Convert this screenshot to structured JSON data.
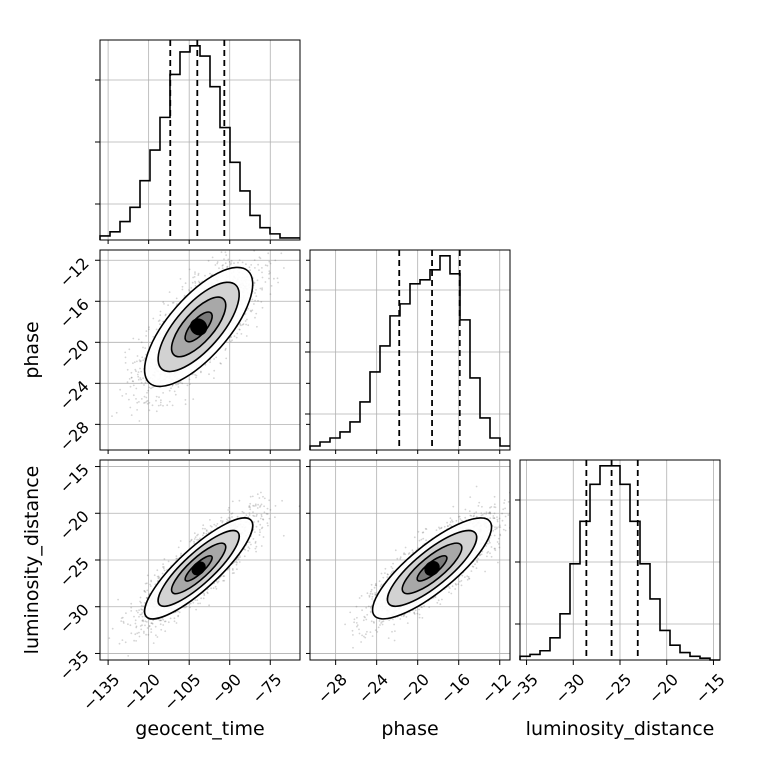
{
  "chart_data": {
    "type": "corner",
    "parameters": [
      {
        "key": "geocent_time",
        "label": "geocent_time",
        "range": [
          -138,
          -64
        ],
        "ticks": [
          -135,
          -120,
          -105,
          -90,
          -75
        ],
        "tick_labels": [
          "−135",
          "−120",
          "−105",
          "−90",
          "−75"
        ],
        "quantiles": [
          -112,
          -102,
          -92
        ]
      },
      {
        "key": "phase",
        "label": "phase",
        "range": [
          -30.5,
          -11.0
        ],
        "ticks": [
          -28,
          -24,
          -20,
          -16,
          -12
        ],
        "tick_labels": [
          "−28",
          "−24",
          "−20",
          "−16",
          "−12"
        ],
        "quantiles": [
          -21.8,
          -18.6,
          -15.9
        ]
      },
      {
        "key": "luminosity_distance",
        "label": "luminosity_distance",
        "range": [
          -35.7,
          -14.3
        ],
        "ticks": [
          -35,
          -30,
          -25,
          -20,
          -15
        ],
        "tick_labels": [
          "−35",
          "−30",
          "−25",
          "−20",
          "−15"
        ],
        "quantiles": [
          -28.6,
          -25.9,
          -23.1
        ]
      }
    ],
    "histograms": [
      {
        "parameter": "geocent_time",
        "edges": [
          -138,
          -134.3,
          -130.6,
          -126.9,
          -123.2,
          -119.5,
          -115.8,
          -112.1,
          -108.4,
          -104.7,
          -101,
          -97.3,
          -93.6,
          -89.9,
          -86.2,
          -82.5,
          -78.8,
          -75.1,
          -71.4,
          -67.7,
          -64
        ],
        "counts": [
          2,
          4,
          9,
          16,
          29,
          44,
          60,
          81,
          92,
          95,
          90,
          75,
          55,
          38,
          24,
          12,
          6,
          3,
          1,
          1
        ]
      },
      {
        "parameter": "phase",
        "edges": [
          -30.5,
          -29.525,
          -28.55,
          -27.575,
          -26.6,
          -25.625,
          -24.65,
          -23.675,
          -22.7,
          -21.725,
          -20.75,
          -19.775,
          -18.8,
          -17.825,
          -16.85,
          -15.875,
          -14.9,
          -13.925,
          -12.95,
          -11.975,
          -11.0
        ],
        "counts": [
          2,
          4,
          6,
          9,
          14,
          24,
          39,
          52,
          67,
          73,
          83,
          85,
          90,
          97,
          88,
          65,
          36,
          16,
          6,
          2
        ]
      },
      {
        "parameter": "luminosity_distance",
        "edges": [
          -35.7,
          -34.63,
          -33.56,
          -32.49,
          -31.42,
          -30.35,
          -29.28,
          -28.21,
          -27.14,
          -26.07,
          -25,
          -23.93,
          -22.86,
          -21.79,
          -20.72,
          -19.65,
          -18.58,
          -17.51,
          -16.44,
          -15.37,
          -14.3
        ],
        "counts": [
          2,
          3,
          5,
          12,
          25,
          52,
          75,
          95,
          105,
          105,
          95,
          75,
          52,
          33,
          16,
          8,
          4,
          2,
          1,
          0
        ]
      }
    ],
    "joint": [
      {
        "x": "geocent_time",
        "y": "phase",
        "center": [
          -101.5,
          -18.5
        ],
        "sd": [
          10,
          2.9
        ],
        "corr": 0.72
      },
      {
        "x": "geocent_time",
        "y": "luminosity_distance",
        "center": [
          -101.5,
          -25.9
        ],
        "sd": [
          10,
          2.7
        ],
        "corr": 0.85
      },
      {
        "x": "phase",
        "y": "luminosity_distance",
        "center": [
          -18.6,
          -25.9
        ],
        "sd": [
          2.9,
          2.7
        ],
        "corr": 0.82
      }
    ],
    "contour_levels_sigma": [
      0.5,
      1.0,
      1.5,
      2.0
    ],
    "grid": true
  }
}
